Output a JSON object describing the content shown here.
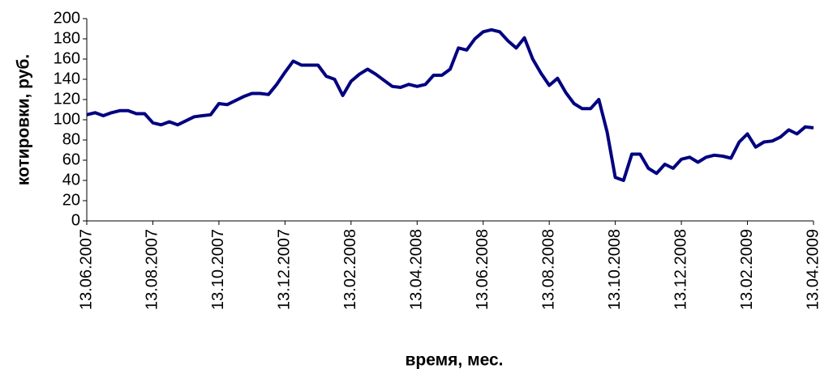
{
  "chart_data": {
    "type": "line",
    "x_label": "время, мес.",
    "y_label": "котировки, руб.",
    "categories": [
      "13.06.2007",
      null,
      null,
      null,
      null,
      null,
      null,
      null,
      "13.08.2007",
      null,
      null,
      null,
      null,
      null,
      null,
      null,
      "13.10.2007",
      null,
      null,
      null,
      null,
      null,
      null,
      null,
      "13.12.2007",
      null,
      null,
      null,
      null,
      null,
      null,
      null,
      "13.02.2008",
      null,
      null,
      null,
      null,
      null,
      null,
      null,
      "13.04.2008",
      null,
      null,
      null,
      null,
      null,
      null,
      null,
      "13.06.2008",
      null,
      null,
      null,
      null,
      null,
      null,
      null,
      "13.08.2008",
      null,
      null,
      null,
      null,
      null,
      null,
      null,
      "13.10.2008",
      null,
      null,
      null,
      null,
      null,
      null,
      null,
      "13.12.2008",
      null,
      null,
      null,
      null,
      null,
      null,
      null,
      "13.02.2009",
      null,
      null,
      null,
      null,
      null,
      null,
      null,
      "13.04.2009"
    ],
    "values": [
      105,
      107,
      104,
      107,
      109,
      109,
      106,
      106,
      97,
      95,
      98,
      95,
      99,
      103,
      104,
      105,
      116,
      115,
      119,
      123,
      126,
      126,
      125,
      135,
      147,
      158,
      154,
      154,
      154,
      143,
      140,
      124,
      138,
      145,
      150,
      145,
      139,
      133,
      132,
      135,
      133,
      135,
      144,
      144,
      150,
      171,
      169,
      180,
      187,
      189,
      187,
      178,
      171,
      181,
      160,
      146,
      134,
      141,
      127,
      116,
      111,
      111,
      120,
      88,
      43,
      40,
      66,
      66,
      52,
      47,
      56,
      52,
      61,
      63,
      58,
      63,
      65,
      64,
      62,
      78,
      86,
      73,
      78,
      79,
      83,
      90,
      86,
      93,
      92
    ],
    "color": "#000080",
    "ylim": [
      0,
      200
    ],
    "yticks": [
      0,
      20,
      40,
      60,
      80,
      100,
      120,
      140,
      160,
      180,
      200
    ]
  }
}
